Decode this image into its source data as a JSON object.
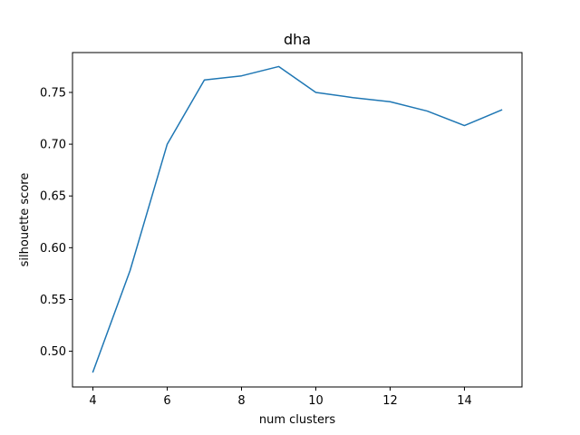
{
  "chart_data": {
    "type": "line",
    "title": "dha",
    "xlabel": "num clusters",
    "ylabel": "silhouette score",
    "xlim": [
      3.45,
      15.55
    ],
    "ylim": [
      0.4655,
      0.7885
    ],
    "xticks": [
      4,
      6,
      8,
      10,
      12,
      14
    ],
    "xtick_labels": [
      "4",
      "6",
      "8",
      "10",
      "12",
      "14"
    ],
    "yticks": [
      0.5,
      0.55,
      0.6,
      0.65,
      0.7,
      0.75
    ],
    "ytick_labels": [
      "0.50",
      "0.55",
      "0.60",
      "0.65",
      "0.70",
      "0.75"
    ],
    "grid": false,
    "series": [
      {
        "color": "#1f77b4",
        "x": [
          4,
          5,
          6,
          7,
          8,
          9,
          10,
          11,
          12,
          13,
          14,
          15
        ],
        "y": [
          0.48,
          0.578,
          0.7,
          0.762,
          0.766,
          0.775,
          0.75,
          0.745,
          0.741,
          0.732,
          0.718,
          0.733
        ]
      }
    ]
  }
}
